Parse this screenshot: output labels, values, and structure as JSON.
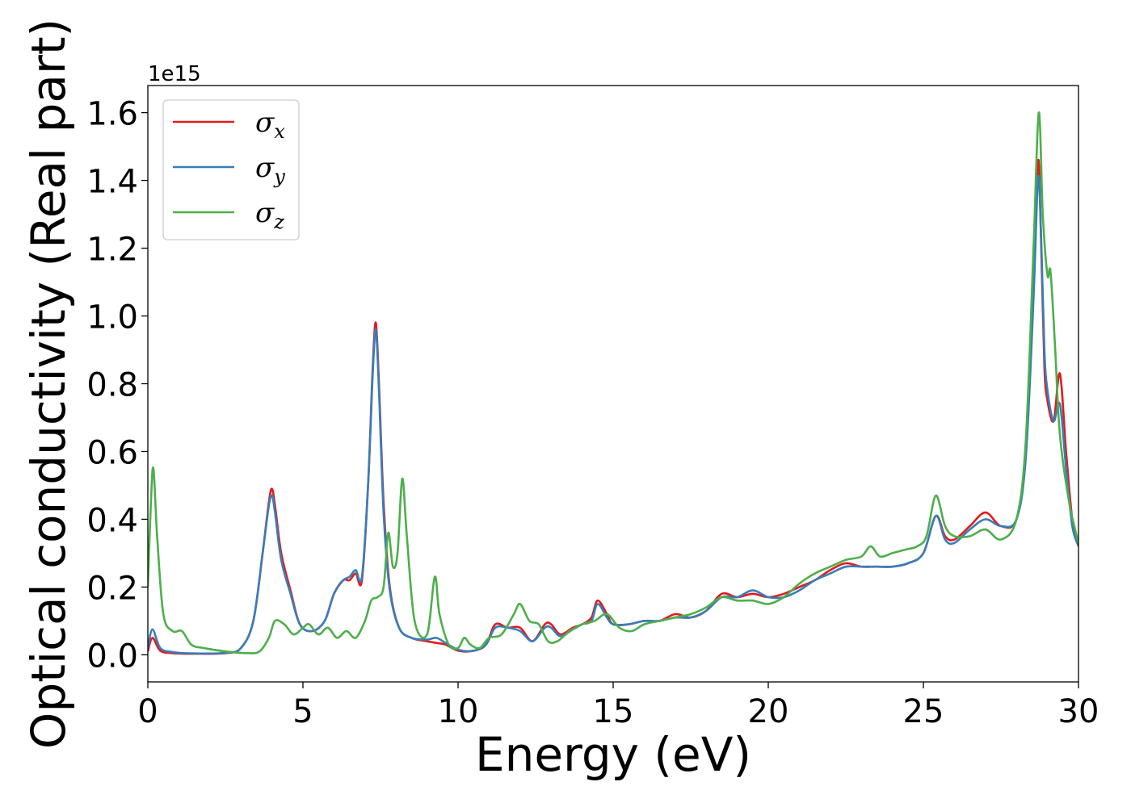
{
  "chart_data": {
    "type": "line",
    "title": "",
    "xlabel": "Energy (eV)",
    "ylabel": "Optical conductivity (Real part)",
    "y_offset_text": "1e15",
    "xlim": [
      0,
      30
    ],
    "ylim": [
      -0.08,
      1.68
    ],
    "x_ticks": [
      0,
      5,
      10,
      15,
      20,
      25,
      30
    ],
    "x_tick_labels": [
      "0",
      "5",
      "10",
      "15",
      "20",
      "25",
      "30"
    ],
    "y_ticks": [
      0.0,
      0.2,
      0.4,
      0.6,
      0.8,
      1.0,
      1.2,
      1.4,
      1.6
    ],
    "y_tick_labels": [
      "0.0",
      "0.2",
      "0.4",
      "0.6",
      "0.8",
      "1.0",
      "1.2",
      "1.4",
      "1.6"
    ],
    "grid": false,
    "legend_position": "top-left",
    "series": [
      {
        "name": "σx",
        "legend_symbol": "σ",
        "legend_subscript": "x",
        "color": "#e41a1c",
        "x": [
          0,
          0.15,
          0.4,
          0.8,
          1.5,
          2.5,
          3.0,
          3.4,
          3.7,
          3.9,
          4.0,
          4.1,
          4.3,
          4.6,
          4.9,
          5.3,
          5.7,
          6.0,
          6.3,
          6.5,
          6.7,
          6.9,
          7.1,
          7.25,
          7.35,
          7.45,
          7.6,
          7.8,
          8.1,
          8.5,
          9.0,
          9.3,
          9.6,
          10.0,
          10.5,
          10.9,
          11.2,
          11.6,
          12.0,
          12.4,
          12.8,
          13.0,
          13.3,
          13.7,
          14.0,
          14.3,
          14.5,
          14.8,
          15.0,
          15.5,
          16.0,
          16.5,
          17.0,
          17.5,
          18.0,
          18.5,
          19.0,
          19.5,
          20.0,
          20.5,
          21.0,
          21.5,
          22.0,
          22.5,
          23.0,
          23.5,
          24.0,
          24.5,
          25.0,
          25.4,
          25.7,
          26.0,
          26.5,
          27.0,
          27.5,
          28.0,
          28.3,
          28.55,
          28.7,
          28.8,
          28.9,
          29.0,
          29.2,
          29.4,
          29.6,
          29.8,
          30.0
        ],
        "y": [
          0.01,
          0.05,
          0.012,
          0.005,
          0.003,
          0.005,
          0.02,
          0.1,
          0.3,
          0.45,
          0.49,
          0.44,
          0.3,
          0.19,
          0.09,
          0.07,
          0.1,
          0.18,
          0.22,
          0.22,
          0.24,
          0.22,
          0.5,
          0.85,
          0.98,
          0.8,
          0.45,
          0.2,
          0.08,
          0.05,
          0.04,
          0.035,
          0.03,
          0.012,
          0.012,
          0.03,
          0.09,
          0.08,
          0.08,
          0.04,
          0.09,
          0.09,
          0.06,
          0.08,
          0.09,
          0.11,
          0.16,
          0.12,
          0.09,
          0.09,
          0.1,
          0.1,
          0.12,
          0.11,
          0.13,
          0.18,
          0.17,
          0.18,
          0.17,
          0.18,
          0.2,
          0.22,
          0.25,
          0.27,
          0.26,
          0.26,
          0.26,
          0.27,
          0.3,
          0.41,
          0.35,
          0.34,
          0.38,
          0.42,
          0.38,
          0.4,
          0.6,
          1.1,
          1.46,
          1.2,
          0.85,
          0.75,
          0.69,
          0.83,
          0.6,
          0.4,
          0.32
        ]
      },
      {
        "name": "σy",
        "legend_symbol": "σ",
        "legend_subscript": "y",
        "color": "#377eb8",
        "x": [
          0,
          0.15,
          0.4,
          0.8,
          1.5,
          2.5,
          3.0,
          3.4,
          3.7,
          3.9,
          4.0,
          4.1,
          4.3,
          4.6,
          4.9,
          5.3,
          5.7,
          6.0,
          6.3,
          6.5,
          6.7,
          6.9,
          7.1,
          7.25,
          7.35,
          7.45,
          7.6,
          7.8,
          8.1,
          8.5,
          9.0,
          9.3,
          9.6,
          10.0,
          10.5,
          10.9,
          11.2,
          11.6,
          12.0,
          12.4,
          12.8,
          13.0,
          13.3,
          13.7,
          14.0,
          14.3,
          14.5,
          14.8,
          15.0,
          15.5,
          16.0,
          16.5,
          17.0,
          17.5,
          18.0,
          18.5,
          19.0,
          19.5,
          20.0,
          20.5,
          21.0,
          21.5,
          22.0,
          22.5,
          23.0,
          23.5,
          24.0,
          24.5,
          25.0,
          25.4,
          25.7,
          26.0,
          26.5,
          27.0,
          27.5,
          28.0,
          28.3,
          28.55,
          28.7,
          28.8,
          28.9,
          29.0,
          29.2,
          29.4,
          29.6,
          29.8,
          30.0
        ],
        "y": [
          0.02,
          0.075,
          0.02,
          0.008,
          0.004,
          0.006,
          0.02,
          0.1,
          0.3,
          0.44,
          0.47,
          0.42,
          0.28,
          0.18,
          0.09,
          0.07,
          0.1,
          0.18,
          0.22,
          0.23,
          0.25,
          0.23,
          0.5,
          0.83,
          0.96,
          0.78,
          0.42,
          0.19,
          0.08,
          0.05,
          0.045,
          0.05,
          0.035,
          0.015,
          0.012,
          0.03,
          0.08,
          0.08,
          0.07,
          0.04,
          0.08,
          0.08,
          0.055,
          0.075,
          0.09,
          0.1,
          0.15,
          0.11,
          0.09,
          0.09,
          0.1,
          0.1,
          0.11,
          0.11,
          0.13,
          0.17,
          0.17,
          0.19,
          0.17,
          0.17,
          0.19,
          0.22,
          0.24,
          0.26,
          0.26,
          0.26,
          0.26,
          0.27,
          0.3,
          0.41,
          0.34,
          0.33,
          0.37,
          0.4,
          0.38,
          0.4,
          0.58,
          1.05,
          1.41,
          1.22,
          0.9,
          0.78,
          0.69,
          0.74,
          0.55,
          0.38,
          0.32
        ]
      },
      {
        "name": "σz",
        "legend_symbol": "σ",
        "legend_subscript": "z",
        "color": "#4daf4a",
        "x": [
          0,
          0.1,
          0.18,
          0.3,
          0.5,
          0.8,
          1.1,
          1.4,
          1.8,
          2.5,
          3.2,
          3.6,
          3.9,
          4.1,
          4.4,
          4.7,
          5.0,
          5.2,
          5.5,
          5.8,
          6.1,
          6.4,
          6.7,
          7.0,
          7.2,
          7.4,
          7.6,
          7.75,
          7.9,
          8.05,
          8.2,
          8.35,
          8.6,
          9.0,
          9.25,
          9.4,
          9.7,
          10.0,
          10.2,
          10.4,
          10.7,
          11.0,
          11.4,
          11.8,
          12.0,
          12.3,
          12.6,
          12.9,
          13.2,
          13.6,
          14.0,
          14.4,
          14.8,
          15.2,
          15.6,
          16.0,
          16.5,
          17.0,
          17.5,
          18.0,
          18.5,
          19.0,
          19.5,
          20.0,
          20.5,
          21.0,
          21.5,
          22.0,
          22.5,
          23.0,
          23.3,
          23.6,
          24.0,
          24.4,
          24.8,
          25.1,
          25.4,
          25.7,
          26.0,
          26.5,
          27.0,
          27.5,
          28.0,
          28.3,
          28.55,
          28.72,
          28.85,
          29.0,
          29.1,
          29.25,
          29.4,
          29.7,
          30.0
        ],
        "y": [
          0.2,
          0.45,
          0.55,
          0.35,
          0.12,
          0.07,
          0.07,
          0.03,
          0.02,
          0.01,
          0.005,
          0.01,
          0.05,
          0.1,
          0.09,
          0.06,
          0.08,
          0.09,
          0.06,
          0.08,
          0.05,
          0.07,
          0.05,
          0.1,
          0.16,
          0.17,
          0.2,
          0.36,
          0.26,
          0.3,
          0.52,
          0.35,
          0.1,
          0.06,
          0.23,
          0.12,
          0.03,
          0.02,
          0.05,
          0.03,
          0.02,
          0.05,
          0.06,
          0.12,
          0.15,
          0.1,
          0.09,
          0.04,
          0.04,
          0.07,
          0.09,
          0.1,
          0.12,
          0.08,
          0.07,
          0.09,
          0.1,
          0.11,
          0.12,
          0.14,
          0.17,
          0.16,
          0.16,
          0.15,
          0.17,
          0.21,
          0.24,
          0.26,
          0.28,
          0.29,
          0.32,
          0.29,
          0.3,
          0.31,
          0.32,
          0.35,
          0.47,
          0.38,
          0.35,
          0.35,
          0.37,
          0.34,
          0.4,
          0.63,
          1.2,
          1.6,
          1.3,
          1.12,
          1.13,
          0.9,
          0.65,
          0.45,
          0.33
        ]
      }
    ]
  }
}
